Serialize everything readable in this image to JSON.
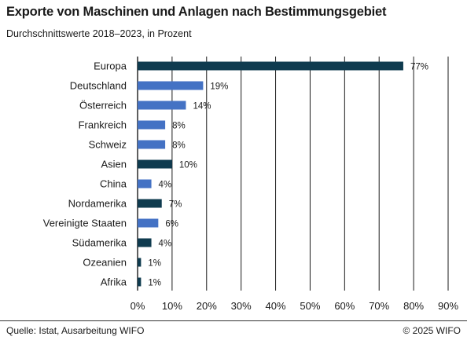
{
  "header": {
    "title": "Exporte von Maschinen und Anlagen nach Bestimmungsgebiet",
    "subtitle": "Durchschnittswerte 2018–2023, in Prozent"
  },
  "footer": {
    "source": "Quelle: Istat, Ausarbeitung WIFO",
    "copyright": "© 2025 WIFO"
  },
  "colors": {
    "dark": "#0f3b4f",
    "light": "#4472c4",
    "grid": "#1a1a1a"
  },
  "chart_data": {
    "type": "bar",
    "orientation": "horizontal",
    "title": "Exporte von Maschinen und Anlagen nach Bestimmungsgebiet",
    "subtitle": "Durchschnittswerte 2018–2023, in Prozent",
    "categories": [
      "Europa",
      "Deutschland",
      "Österreich",
      "Frankreich",
      "Schweiz",
      "Asien",
      "China",
      "Nordamerika",
      "Vereinigte Staaten",
      "Südamerika",
      "Ozeanien",
      "Afrika"
    ],
    "values": [
      77,
      19,
      14,
      8,
      8,
      10,
      4,
      7,
      6,
      4,
      1,
      1
    ],
    "data_labels": [
      "77%",
      "19%",
      "14%",
      "8%",
      "8%",
      "10%",
      "4%",
      "7%",
      "6%",
      "4%",
      "1%",
      "1%"
    ],
    "bar_colors": [
      "dark",
      "light",
      "light",
      "light",
      "light",
      "dark",
      "light",
      "dark",
      "light",
      "dark",
      "dark",
      "dark"
    ],
    "xlim": [
      0,
      90
    ],
    "xticks": [
      0,
      10,
      20,
      30,
      40,
      50,
      60,
      70,
      80,
      90
    ],
    "xtick_labels": [
      "0%",
      "10%",
      "20%",
      "30%",
      "40%",
      "50%",
      "60%",
      "70%",
      "80%",
      "90%"
    ],
    "grid": "vertical",
    "legend": "none"
  }
}
